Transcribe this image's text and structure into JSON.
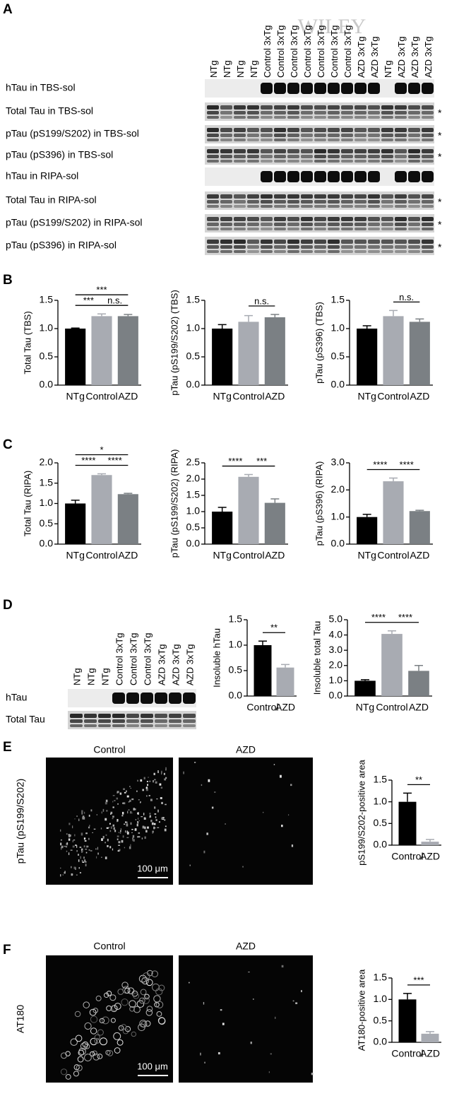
{
  "panel_labels": [
    "A",
    "B",
    "C",
    "D",
    "E",
    "F"
  ],
  "watermark": "WILEY",
  "blot_a": {
    "lanes": [
      "NTg",
      "NTg",
      "NTg",
      "NTg",
      "Control 3xTg",
      "Control 3xTg",
      "Control 3xTg",
      "Control 3xTg",
      "Control 3xTg",
      "Control 3xTg",
      "Control 3xTg",
      "AZD 3xTg",
      "AZD 3xTg",
      "NTg",
      "AZD 3xTg",
      "AZD 3xTg",
      "AZD 3xTg"
    ],
    "rows": [
      {
        "label": "hTau in TBS-sol"
      },
      {
        "label": "Total Tau in TBS-sol",
        "asterisk": "*"
      },
      {
        "label": "pTau (pS199/S202) in TBS-sol",
        "asterisk": "*"
      },
      {
        "label": "pTau (pS396) in TBS-sol",
        "asterisk": "*"
      },
      {
        "label": "hTau in RIPA-sol"
      },
      {
        "label": "Total Tau in RIPA-sol",
        "asterisk": "*"
      },
      {
        "label": "pTau (pS199/S202) in RIPA-sol",
        "asterisk": "*"
      },
      {
        "label": "pTau (pS396) in RIPA-sol",
        "asterisk": "*"
      }
    ]
  },
  "blot_d": {
    "lanes": [
      "NTg",
      "NTg",
      "NTg",
      "Control 3xTg",
      "Control 3xTg",
      "Control 3xTg",
      "AZD 3xTg",
      "AZD 3xTg",
      "AZD 3xTg"
    ],
    "rows": [
      {
        "label": "hTau"
      },
      {
        "label": "Total Tau"
      }
    ]
  },
  "micrographs": [
    {
      "ylabel": "pTau (pS199/S202)",
      "titles": [
        "Control",
        "AZD"
      ],
      "scale": "100 μm"
    },
    {
      "ylabel": "AT180",
      "titles": [
        "Control",
        "AZD"
      ],
      "scale": "100 μm"
    }
  ],
  "chart_data": [
    {
      "type": "bar",
      "ylabel": "Total Tau (TBS)",
      "categories": [
        "NTg",
        "Control",
        "AZD"
      ],
      "values": [
        1.0,
        1.22,
        1.22
      ],
      "errors": [
        0.01,
        0.04,
        0.03
      ],
      "colors": [
        "#000000",
        "#a8abb2",
        "#7b8084"
      ],
      "ylim": [
        0,
        1.5
      ],
      "yticks": [
        {
          "value": 0,
          "label": "0.0"
        },
        0.5,
        {
          "value": 1,
          "label": "1.0"
        },
        1.5
      ],
      "annotations": [
        {
          "text": "***",
          "between": [
            "NTg",
            "Control"
          ]
        },
        {
          "text": "n.s.",
          "between": [
            "Control",
            "AZD"
          ]
        },
        {
          "text": "***",
          "between": [
            "NTg",
            "AZD"
          ]
        }
      ]
    },
    {
      "type": "bar",
      "ylabel": "pTau (pS199/S202) (TBS)",
      "categories": [
        "NTg",
        "Control",
        "AZD"
      ],
      "values": [
        1.0,
        1.12,
        1.2
      ],
      "errors": [
        0.07,
        0.11,
        0.05
      ],
      "colors": [
        "#000000",
        "#a8abb2",
        "#7b8084"
      ],
      "ylim": [
        0,
        1.5
      ],
      "yticks": [
        {
          "value": 0,
          "label": "0.0"
        },
        0.5,
        {
          "value": 1,
          "label": "1.0"
        },
        1.5
      ],
      "annotations": [
        {
          "text": "n.s.",
          "between": [
            "Control",
            "AZD"
          ]
        }
      ]
    },
    {
      "type": "bar",
      "ylabel": "pTau (pS396) (TBS)",
      "categories": [
        "NTg",
        "Control",
        "AZD"
      ],
      "values": [
        1.0,
        1.22,
        1.12
      ],
      "errors": [
        0.05,
        0.1,
        0.05
      ],
      "colors": [
        "#000000",
        "#a8abb2",
        "#7b8084"
      ],
      "ylim": [
        0,
        1.5
      ],
      "yticks": [
        {
          "value": 0,
          "label": "0.0"
        },
        0.5,
        {
          "value": 1,
          "label": "1.0"
        },
        1.5
      ],
      "annotations": [
        {
          "text": "n.s.",
          "between": [
            "Control",
            "AZD"
          ]
        }
      ]
    },
    {
      "type": "bar",
      "ylabel": "Total Tau (RIPA)",
      "categories": [
        "NTg",
        "Control",
        "AZD"
      ],
      "values": [
        1.0,
        1.7,
        1.23
      ],
      "errors": [
        0.08,
        0.03,
        0.02
      ],
      "colors": [
        "#000000",
        "#a8abb2",
        "#7b8084"
      ],
      "ylim": [
        0,
        2
      ],
      "yticks": [
        {
          "value": 0,
          "label": "0.0"
        },
        0.5,
        {
          "value": 1,
          "label": "1.0"
        },
        1.5,
        {
          "value": 2,
          "label": "2.0"
        }
      ],
      "annotations": [
        {
          "text": "****",
          "between": [
            "NTg",
            "Control"
          ]
        },
        {
          "text": "****",
          "between": [
            "Control",
            "AZD"
          ]
        },
        {
          "text": "*",
          "between": [
            "NTg",
            "AZD"
          ]
        }
      ]
    },
    {
      "type": "bar",
      "ylabel": "pTau (pS199/S202) (RIPA)",
      "categories": [
        "NTg",
        "Control",
        "AZD"
      ],
      "values": [
        1.0,
        2.07,
        1.27
      ],
      "errors": [
        0.13,
        0.07,
        0.12
      ],
      "colors": [
        "#000000",
        "#a8abb2",
        "#7b8084"
      ],
      "ylim": [
        0,
        2.5
      ],
      "yticks": [
        {
          "value": 0,
          "label": "0.0"
        },
        0.5,
        {
          "value": 1,
          "label": "1.0"
        },
        1.5,
        {
          "value": 2,
          "label": "2.0"
        },
        2.5
      ],
      "annotations": [
        {
          "text": "****",
          "between": [
            "NTg",
            "Control"
          ]
        },
        {
          "text": "***",
          "between": [
            "Control",
            "AZD"
          ]
        }
      ]
    },
    {
      "type": "bar",
      "ylabel": "pTau (pS396) (RIPA)",
      "categories": [
        "NTg",
        "Control",
        "AZD"
      ],
      "values": [
        1.0,
        2.32,
        1.22
      ],
      "errors": [
        0.1,
        0.12,
        0.03
      ],
      "colors": [
        "#000000",
        "#a8abb2",
        "#7b8084"
      ],
      "ylim": [
        0,
        3
      ],
      "yticks": [
        {
          "value": 0,
          "label": "0.0"
        },
        {
          "value": 1,
          "label": "1.0"
        },
        {
          "value": 2,
          "label": "2.0"
        },
        {
          "value": 3,
          "label": "3.0"
        }
      ],
      "annotations": [
        {
          "text": "****",
          "between": [
            "NTg",
            "Control"
          ]
        },
        {
          "text": "****",
          "between": [
            "Control",
            "AZD"
          ]
        }
      ]
    },
    {
      "type": "bar",
      "ylabel": "Insoluble hTau",
      "categories": [
        "Control",
        "AZD"
      ],
      "values": [
        1.0,
        0.56
      ],
      "errors": [
        0.08,
        0.06
      ],
      "colors": [
        "#000000",
        "#a8abb2"
      ],
      "ylim": [
        0,
        1.5
      ],
      "yticks": [
        {
          "value": 0,
          "label": "0.0"
        },
        0.5,
        {
          "value": 1,
          "label": "1.0"
        },
        1.5
      ],
      "annotations": [
        {
          "text": "**",
          "between": [
            "Control",
            "AZD"
          ]
        }
      ]
    },
    {
      "type": "bar",
      "ylabel": "Insoluble total Tau",
      "categories": [
        "NTg",
        "Control",
        "AZD"
      ],
      "values": [
        1.0,
        4.07,
        1.65
      ],
      "errors": [
        0.07,
        0.2,
        0.35
      ],
      "colors": [
        "#000000",
        "#a8abb2",
        "#7b8084"
      ],
      "ylim": [
        0,
        5
      ],
      "yticks": [
        {
          "value": 0,
          "label": "0.0"
        },
        {
          "value": 1,
          "label": "1.0"
        },
        {
          "value": 2,
          "label": "2.0"
        },
        {
          "value": 3,
          "label": "3.0"
        },
        {
          "value": 4,
          "label": "4.0"
        },
        {
          "value": 5,
          "label": "5.0"
        }
      ],
      "annotations": [
        {
          "text": "****",
          "between": [
            "NTg",
            "Control"
          ]
        },
        {
          "text": "****",
          "between": [
            "Control",
            "AZD"
          ]
        }
      ]
    },
    {
      "type": "bar",
      "ylabel": "pS199/S202-positive area",
      "categories": [
        "Control",
        "AZD"
      ],
      "values": [
        1.0,
        0.08
      ],
      "errors": [
        0.2,
        0.05
      ],
      "colors": [
        "#000000",
        "#a8abb2"
      ],
      "ylim": [
        0,
        1.5
      ],
      "yticks": [
        {
          "value": 0,
          "label": "0.0"
        },
        0.5,
        {
          "value": 1,
          "label": "1.0"
        },
        1.5
      ],
      "annotations": [
        {
          "text": "**",
          "between": [
            "Control",
            "AZD"
          ]
        }
      ]
    },
    {
      "type": "bar",
      "ylabel": "AT180-positive area",
      "categories": [
        "Control",
        "AZD"
      ],
      "values": [
        1.0,
        0.2
      ],
      "errors": [
        0.14,
        0.05
      ],
      "colors": [
        "#000000",
        "#a8abb2"
      ],
      "ylim": [
        0,
        1.5
      ],
      "yticks": [
        {
          "value": 0,
          "label": "0.0"
        },
        0.5,
        {
          "value": 1,
          "label": "1.0"
        },
        1.5
      ],
      "annotations": [
        {
          "text": "***",
          "between": [
            "Control",
            "AZD"
          ]
        }
      ]
    }
  ]
}
